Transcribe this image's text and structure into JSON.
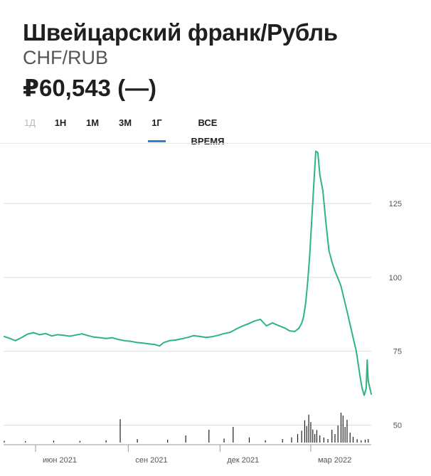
{
  "header": {
    "title": "Швейцарский франк/Рубль",
    "subtitle": "CHF/RUB",
    "price": "₽60,543 (—)"
  },
  "tabs": [
    {
      "label": "1Д",
      "state": "disabled"
    },
    {
      "label": "1Н",
      "state": "normal"
    },
    {
      "label": "1М",
      "state": "normal"
    },
    {
      "label": "3М",
      "state": "normal"
    },
    {
      "label": "1Г",
      "state": "active"
    },
    {
      "label": "ВСЕ ВРЕМЯ",
      "state": "normal"
    }
  ],
  "colors": {
    "line": "#2fb57f",
    "grid": "#dddddd",
    "axis_text": "#555555",
    "volume": "#1f1f1f",
    "active_tab": "#2f7bd8"
  },
  "chart_data": {
    "type": "line",
    "ylim": [
      50,
      145
    ],
    "yticks": [
      "50",
      "75",
      "100",
      "125"
    ],
    "x_start": "2021-05-01",
    "x_end": "2022-04-30",
    "x_month_markers": [
      {
        "date": "2021-06-01",
        "label": "июн 2021"
      },
      {
        "date": "2021-09-01",
        "label": "сен 2021"
      },
      {
        "date": "2021-12-01",
        "label": "дек 2021"
      },
      {
        "date": "2022-03-01",
        "label": "мар 2022"
      }
    ],
    "series": [
      {
        "values": [
          [
            "2021-05-01",
            80.0
          ],
          [
            "2021-05-06",
            79.4
          ],
          [
            "2021-05-12",
            78.6
          ],
          [
            "2021-05-18",
            79.6
          ],
          [
            "2021-05-24",
            80.8
          ],
          [
            "2021-05-30",
            81.3
          ],
          [
            "2021-06-05",
            80.6
          ],
          [
            "2021-06-11",
            81.0
          ],
          [
            "2021-06-17",
            80.2
          ],
          [
            "2021-06-23",
            80.6
          ],
          [
            "2021-06-29",
            80.4
          ],
          [
            "2021-07-05",
            80.1
          ],
          [
            "2021-07-11",
            80.5
          ],
          [
            "2021-07-17",
            80.9
          ],
          [
            "2021-07-23",
            80.3
          ],
          [
            "2021-07-29",
            79.8
          ],
          [
            "2021-08-04",
            79.6
          ],
          [
            "2021-08-10",
            79.3
          ],
          [
            "2021-08-16",
            79.6
          ],
          [
            "2021-08-22",
            79.0
          ],
          [
            "2021-08-28",
            78.6
          ],
          [
            "2021-09-03",
            78.4
          ],
          [
            "2021-09-09",
            78.0
          ],
          [
            "2021-09-15",
            77.8
          ],
          [
            "2021-09-21",
            77.5
          ],
          [
            "2021-09-27",
            77.3
          ],
          [
            "2021-10-02",
            76.8
          ],
          [
            "2021-10-06",
            77.9
          ],
          [
            "2021-10-12",
            78.6
          ],
          [
            "2021-10-18",
            78.8
          ],
          [
            "2021-10-24",
            79.2
          ],
          [
            "2021-10-30",
            79.7
          ],
          [
            "2021-11-05",
            80.3
          ],
          [
            "2021-11-11",
            80.0
          ],
          [
            "2021-11-17",
            79.7
          ],
          [
            "2021-11-23",
            79.9
          ],
          [
            "2021-11-29",
            80.4
          ],
          [
            "2021-12-05",
            81.0
          ],
          [
            "2021-12-11",
            81.4
          ],
          [
            "2021-12-17",
            82.5
          ],
          [
            "2021-12-23",
            83.5
          ],
          [
            "2021-12-29",
            84.3
          ],
          [
            "2022-01-04",
            85.2
          ],
          [
            "2022-01-10",
            85.8
          ],
          [
            "2022-01-16",
            83.6
          ],
          [
            "2022-01-22",
            84.6
          ],
          [
            "2022-01-28",
            83.7
          ],
          [
            "2022-02-03",
            82.9
          ],
          [
            "2022-02-08",
            81.9
          ],
          [
            "2022-02-13",
            81.7
          ],
          [
            "2022-02-17",
            82.7
          ],
          [
            "2022-02-20",
            84.5
          ],
          [
            "2022-02-22",
            86.8
          ],
          [
            "2022-02-24",
            91.6
          ],
          [
            "2022-02-26",
            98.7
          ],
          [
            "2022-02-28",
            107.6
          ],
          [
            "2022-03-02",
            119.8
          ],
          [
            "2022-03-04",
            131.4
          ],
          [
            "2022-03-06",
            142.7
          ],
          [
            "2022-03-08",
            142.2
          ],
          [
            "2022-03-10",
            134.8
          ],
          [
            "2022-03-13",
            129.2
          ],
          [
            "2022-03-16",
            118.6
          ],
          [
            "2022-03-19",
            109.1
          ],
          [
            "2022-03-22",
            105.3
          ],
          [
            "2022-03-25",
            102.1
          ],
          [
            "2022-03-28",
            99.7
          ],
          [
            "2022-03-31",
            97.0
          ],
          [
            "2022-04-03",
            92.8
          ],
          [
            "2022-04-06",
            88.5
          ],
          [
            "2022-04-09",
            84.1
          ],
          [
            "2022-04-12",
            79.6
          ],
          [
            "2022-04-15",
            75.3
          ],
          [
            "2022-04-17",
            70.8
          ],
          [
            "2022-04-19",
            66.2
          ],
          [
            "2022-04-21",
            62.4
          ],
          [
            "2022-04-23",
            60.1
          ],
          [
            "2022-04-25",
            62.5
          ],
          [
            "2022-04-26",
            72.0
          ],
          [
            "2022-04-27",
            65.0
          ],
          [
            "2022-04-28",
            63.4
          ],
          [
            "2022-04-29",
            62.0
          ],
          [
            "2022-04-30",
            60.5
          ]
        ]
      }
    ],
    "volume": [
      [
        "2021-05-01",
        0.06
      ],
      [
        "2021-05-22",
        0.05
      ],
      [
        "2021-06-19",
        0.07
      ],
      [
        "2021-07-15",
        0.06
      ],
      [
        "2021-08-10",
        0.08
      ],
      [
        "2021-08-24",
        0.82
      ],
      [
        "2021-09-10",
        0.12
      ],
      [
        "2021-10-10",
        0.1
      ],
      [
        "2021-10-28",
        0.25
      ],
      [
        "2021-11-20",
        0.45
      ],
      [
        "2021-12-05",
        0.14
      ],
      [
        "2021-12-14",
        0.55
      ],
      [
        "2021-12-30",
        0.18
      ],
      [
        "2022-01-15",
        0.08
      ],
      [
        "2022-02-01",
        0.12
      ],
      [
        "2022-02-10",
        0.18
      ],
      [
        "2022-02-16",
        0.3
      ],
      [
        "2022-02-20",
        0.42
      ],
      [
        "2022-02-23",
        0.78
      ],
      [
        "2022-02-25",
        0.58
      ],
      [
        "2022-02-27",
        0.98
      ],
      [
        "2022-03-01",
        0.72
      ],
      [
        "2022-03-03",
        0.46
      ],
      [
        "2022-03-05",
        0.3
      ],
      [
        "2022-03-07",
        0.44
      ],
      [
        "2022-03-10",
        0.25
      ],
      [
        "2022-03-14",
        0.18
      ],
      [
        "2022-03-18",
        0.12
      ],
      [
        "2022-03-22",
        0.45
      ],
      [
        "2022-03-25",
        0.3
      ],
      [
        "2022-03-28",
        0.6
      ],
      [
        "2022-03-31",
        1.05
      ],
      [
        "2022-04-02",
        0.95
      ],
      [
        "2022-04-04",
        0.55
      ],
      [
        "2022-04-06",
        0.8
      ],
      [
        "2022-04-09",
        0.35
      ],
      [
        "2022-04-12",
        0.2
      ],
      [
        "2022-04-16",
        0.12
      ],
      [
        "2022-04-20",
        0.08
      ],
      [
        "2022-04-24",
        0.1
      ],
      [
        "2022-04-27",
        0.12
      ]
    ]
  }
}
